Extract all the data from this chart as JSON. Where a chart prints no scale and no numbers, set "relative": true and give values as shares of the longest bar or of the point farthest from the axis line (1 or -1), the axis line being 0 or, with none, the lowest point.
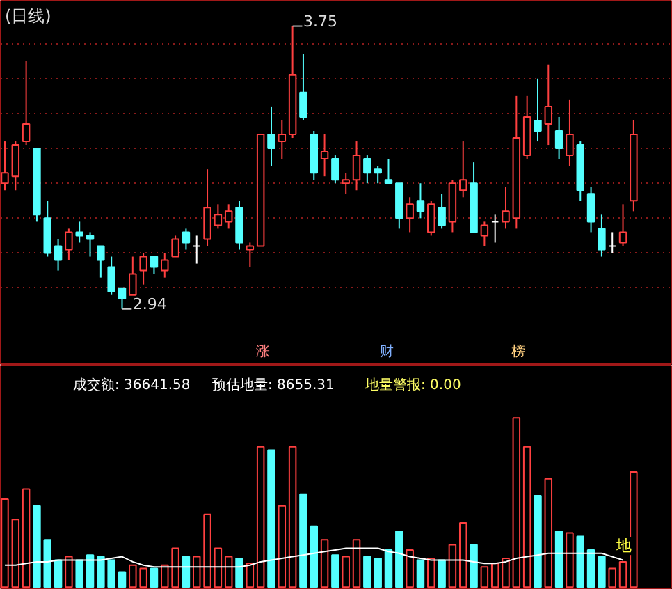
{
  "chart_data": [
    {
      "type": "candlestick",
      "title": "(日线)",
      "categories": [
        null,
        null,
        null,
        null,
        null,
        null,
        null,
        null,
        null,
        null,
        null,
        null,
        null,
        null,
        null,
        null,
        null,
        null,
        null,
        null,
        null,
        null,
        null,
        null,
        null,
        null,
        null,
        null,
        null,
        null,
        null,
        null,
        null,
        null,
        null,
        null,
        null,
        null,
        null,
        null,
        null,
        null,
        null,
        null,
        null,
        null,
        null,
        null,
        null,
        null,
        null,
        null,
        null,
        null,
        null,
        null,
        null,
        null,
        null,
        null
      ],
      "ohlc": [
        [
          3.3,
          3.42,
          3.28,
          3.33
        ],
        [
          3.32,
          3.42,
          3.28,
          3.41
        ],
        [
          3.42,
          3.65,
          3.41,
          3.47
        ],
        [
          3.4,
          3.4,
          3.19,
          3.21
        ],
        [
          3.2,
          3.25,
          3.09,
          3.1
        ],
        [
          3.12,
          3.14,
          3.05,
          3.08
        ],
        [
          3.11,
          3.17,
          3.08,
          3.16
        ],
        [
          3.16,
          3.19,
          3.13,
          3.15
        ],
        [
          3.15,
          3.16,
          3.09,
          3.14
        ],
        [
          3.12,
          3.12,
          3.03,
          3.08
        ],
        [
          3.06,
          3.09,
          2.98,
          2.99
        ],
        [
          3.0,
          3.0,
          2.94,
          2.97
        ],
        [
          2.98,
          3.09,
          2.98,
          3.04
        ],
        [
          3.05,
          3.1,
          3.01,
          3.09
        ],
        [
          3.09,
          3.09,
          3.04,
          3.06
        ],
        [
          3.05,
          3.1,
          3.03,
          3.08
        ],
        [
          3.09,
          3.15,
          3.09,
          3.14
        ],
        [
          3.16,
          3.17,
          3.11,
          3.13
        ],
        [
          3.12,
          3.15,
          3.07,
          3.12
        ],
        [
          3.14,
          3.34,
          3.12,
          3.23
        ],
        [
          3.18,
          3.24,
          3.17,
          3.21
        ],
        [
          3.19,
          3.24,
          3.17,
          3.22
        ],
        [
          3.23,
          3.25,
          3.11,
          3.13
        ],
        [
          3.11,
          3.13,
          3.06,
          3.12
        ],
        [
          3.12,
          3.44,
          3.12,
          3.44
        ],
        [
          3.44,
          3.52,
          3.35,
          3.4
        ],
        [
          3.42,
          3.48,
          3.37,
          3.44
        ],
        [
          3.44,
          3.75,
          3.43,
          3.61
        ],
        [
          3.56,
          3.67,
          3.48,
          3.49
        ],
        [
          3.44,
          3.45,
          3.31,
          3.33
        ],
        [
          3.37,
          3.44,
          3.32,
          3.39
        ],
        [
          3.37,
          3.38,
          3.3,
          3.31
        ],
        [
          3.3,
          3.33,
          3.27,
          3.31
        ],
        [
          3.31,
          3.42,
          3.28,
          3.38
        ],
        [
          3.37,
          3.38,
          3.3,
          3.33
        ],
        [
          3.34,
          3.35,
          3.3,
          3.33
        ],
        [
          3.31,
          3.37,
          3.3,
          3.3
        ],
        [
          3.3,
          3.3,
          3.17,
          3.2
        ],
        [
          3.2,
          3.26,
          3.16,
          3.24
        ],
        [
          3.25,
          3.3,
          3.2,
          3.22
        ],
        [
          3.16,
          3.25,
          3.15,
          3.24
        ],
        [
          3.23,
          3.27,
          3.17,
          3.18
        ],
        [
          3.19,
          3.31,
          3.16,
          3.3
        ],
        [
          3.28,
          3.42,
          3.26,
          3.31
        ],
        [
          3.3,
          3.36,
          3.16,
          3.16
        ],
        [
          3.15,
          3.19,
          3.12,
          3.18
        ],
        [
          3.19,
          3.21,
          3.13,
          3.19
        ],
        [
          3.19,
          3.29,
          3.17,
          3.22
        ],
        [
          3.2,
          3.55,
          3.17,
          3.43
        ],
        [
          3.38,
          3.55,
          3.37,
          3.49
        ],
        [
          3.48,
          3.6,
          3.42,
          3.45
        ],
        [
          3.47,
          3.64,
          3.41,
          3.52
        ],
        [
          3.45,
          3.49,
          3.37,
          3.4
        ],
        [
          3.38,
          3.54,
          3.35,
          3.44
        ],
        [
          3.41,
          3.42,
          3.25,
          3.28
        ],
        [
          3.27,
          3.29,
          3.16,
          3.19
        ],
        [
          3.17,
          3.21,
          3.09,
          3.11
        ],
        [
          3.12,
          3.16,
          3.1,
          3.12
        ],
        [
          3.13,
          3.24,
          3.12,
          3.16
        ],
        [
          3.25,
          3.48,
          3.22,
          3.44
        ]
      ],
      "colors": [
        "#ff4040",
        "#ff4040",
        "#ff4040",
        "#54ffff",
        "#54ffff",
        "#54ffff",
        "#ff4040",
        "#54ffff",
        "#54ffff",
        "#54ffff",
        "#54ffff",
        "#54ffff",
        "#ff4040",
        "#ff4040",
        "#54ffff",
        "#ff4040",
        "#ff4040",
        "#54ffff",
        "#ffffff",
        "#ff4040",
        "#ff4040",
        "#ff4040",
        "#54ffff",
        "#ff4040",
        "#ff4040",
        "#54ffff",
        "#ff4040",
        "#ff4040",
        "#54ffff",
        "#54ffff",
        "#ff4040",
        "#54ffff",
        "#ff4040",
        "#ff4040",
        "#54ffff",
        "#54ffff",
        "#54ffff",
        "#54ffff",
        "#ff4040",
        "#54ffff",
        "#ff4040",
        "#54ffff",
        "#ff4040",
        "#ff4040",
        "#54ffff",
        "#ff4040",
        "#ffffff",
        "#ff4040",
        "#ff4040",
        "#ff4040",
        "#54ffff",
        "#ff4040",
        "#54ffff",
        "#ff4040",
        "#54ffff",
        "#54ffff",
        "#54ffff",
        "#ffffff",
        "#ff4040",
        "#ff4040"
      ],
      "yticks": [
        {
          "value": 3.0,
          "label": null
        },
        {
          "value": 3.1,
          "label": null
        },
        {
          "value": 3.2,
          "label": null
        },
        {
          "value": 3.3,
          "label": null
        },
        {
          "value": 3.4,
          "label": null
        },
        {
          "value": 3.5,
          "label": null
        },
        {
          "value": 3.6,
          "label": null
        },
        {
          "value": 3.7,
          "label": null
        }
      ],
      "grid": "y",
      "tick_labels": false,
      "annotations": [
        "3.75",
        "2.94",
        "涨",
        "财",
        "榜"
      ]
    },
    {
      "type": "bar",
      "relative": true,
      "tick_labels": false,
      "categories": [
        null,
        null,
        null,
        null,
        null,
        null,
        null,
        null,
        null,
        null,
        null,
        null,
        null,
        null,
        null,
        null,
        null,
        null,
        null,
        null,
        null,
        null,
        null,
        null,
        null,
        null,
        null,
        null,
        null,
        null,
        null,
        null,
        null,
        null,
        null,
        null,
        null,
        null,
        null,
        null,
        null,
        null,
        null,
        null,
        null,
        null,
        null,
        null,
        null,
        null,
        null,
        null,
        null,
        null,
        null,
        null,
        null,
        null,
        null,
        null
      ],
      "series": [
        {
          "type": "bar",
          "values": [
            0.52,
            0.4,
            0.58,
            0.48,
            0.28,
            0.16,
            0.18,
            0.16,
            0.19,
            0.18,
            0.16,
            0.09,
            0.13,
            0.11,
            0.11,
            0.13,
            0.23,
            0.18,
            0.18,
            0.43,
            0.23,
            0.18,
            0.17,
            0.14,
            0.83,
            0.81,
            0.48,
            0.83,
            0.55,
            0.36,
            0.28,
            0.19,
            0.18,
            0.28,
            0.18,
            0.17,
            0.22,
            0.33,
            0.22,
            0.16,
            0.17,
            0.16,
            0.25,
            0.38,
            0.25,
            0.12,
            0.14,
            0.17,
            1,
            0.83,
            0.54,
            0.64,
            0.33,
            0.32,
            0.3,
            0.22,
            0.18,
            0.11,
            0.15,
            0.68
          ],
          "colors": [
            "#ff4040",
            "#ff4040",
            "#ff4040",
            "#54ffff",
            "#54ffff",
            "#54ffff",
            "#ff4040",
            "#54ffff",
            "#54ffff",
            "#54ffff",
            "#54ffff",
            "#54ffff",
            "#ff4040",
            "#ff4040",
            "#54ffff",
            "#ff4040",
            "#ff4040",
            "#54ffff",
            "#ff4040",
            "#ff4040",
            "#ff4040",
            "#ff4040",
            "#54ffff",
            "#ff4040",
            "#ff4040",
            "#54ffff",
            "#ff4040",
            "#ff4040",
            "#54ffff",
            "#54ffff",
            "#ff4040",
            "#54ffff",
            "#ff4040",
            "#ff4040",
            "#54ffff",
            "#54ffff",
            "#54ffff",
            "#54ffff",
            "#ff4040",
            "#54ffff",
            "#ff4040",
            "#54ffff",
            "#ff4040",
            "#ff4040",
            "#54ffff",
            "#ff4040",
            "#ff4040",
            "#ff4040",
            "#ff4040",
            "#ff4040",
            "#54ffff",
            "#ff4040",
            "#54ffff",
            "#ff4040",
            "#54ffff",
            "#54ffff",
            "#54ffff",
            "#ff4040",
            "#ff4040",
            "#ff4040"
          ]
        },
        {
          "type": "line",
          "color": "#ffffff",
          "values": [
            0.13,
            0.13,
            0.14,
            0.15,
            0.15,
            0.16,
            0.16,
            0.16,
            0.16,
            0.16,
            0.17,
            0.18,
            0.15,
            0.13,
            0.12,
            0.12,
            0.12,
            0.12,
            0.12,
            0.12,
            0.12,
            0.12,
            0.12,
            0.13,
            0.15,
            0.16,
            0.17,
            0.18,
            0.19,
            0.2,
            0.21,
            0.22,
            0.23,
            0.23,
            0.23,
            0.23,
            0.21,
            0.2,
            0.18,
            0.17,
            0.16,
            0.16,
            0.16,
            0.16,
            0.15,
            0.14,
            0.14,
            0.15,
            0.17,
            0.18,
            0.19,
            0.2,
            0.2,
            0.2,
            0.2,
            0.2,
            0.2,
            0.18,
            0.16,
            null
          ]
        }
      ],
      "annotations": [
        "成交额: 36641.58",
        "预估地量: 8655.31",
        "地量警报: 0.00",
        "地"
      ]
    }
  ]
}
